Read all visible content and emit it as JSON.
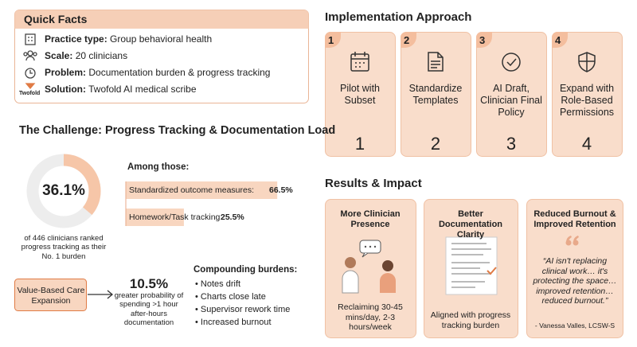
{
  "quick_facts": {
    "title": "Quick Facts",
    "logo": "Twofold",
    "items": [
      {
        "label": "Practice type:",
        "text": "Group behavioral health"
      },
      {
        "label": "Scale:",
        "text": "20 clinicians"
      },
      {
        "label": "Problem:",
        "text": "Documentation burden & progress tracking"
      },
      {
        "label": "Solution:",
        "text": "Twofold AI medical scribe"
      }
    ]
  },
  "challenge": {
    "title": "The Challenge: Progress Tracking & Documentation Load",
    "donut": {
      "value": 36.1,
      "label": "36.1%",
      "caption": "of 446 clinicians ranked progress tracking as their No. 1 burden"
    },
    "among_title": "Among those:",
    "bars": [
      {
        "label": "Standardized outcome measures:",
        "value": 66.5,
        "value_label": "66.5%"
      },
      {
        "label": "Homework/Task tracking:",
        "value": 25.5,
        "value_label": "25.5%"
      }
    ],
    "value_based": "Value-Based Care Expansion",
    "stat": {
      "label": "10.5%",
      "text": "greater probability of spending >1 hour after-hours documentation"
    },
    "compounding_title": "Compounding burdens:",
    "compounding": [
      "Notes drift",
      "Charts close late",
      "Supervisor rework time",
      "Increased burnout"
    ]
  },
  "implementation": {
    "title": "Implementation Approach",
    "steps": [
      {
        "number": "1",
        "text": "Pilot with Subset"
      },
      {
        "number": "2",
        "text": "Standardize Templates"
      },
      {
        "number": "3",
        "text": "AI Draft, Clinician Final Policy"
      },
      {
        "number": "4",
        "text": "Expand with Role-Based Permissions"
      }
    ]
  },
  "results": {
    "title": "Results & Impact",
    "cards": [
      {
        "title": "More Clinician Presence",
        "caption": "Reclaiming 30-45 mins/day, 2-3 hours/week"
      },
      {
        "title": "Better Documentation Clarity",
        "caption": "Aligned with progress tracking burden"
      },
      {
        "title": "Reduced Burnout & Improved Retention",
        "quote": "“AI isn't replacing clinical work… it's protecting the space… improved retention… reduced burnout.”",
        "caption": "- Vanessa Valles, LCSW-S"
      }
    ]
  }
}
